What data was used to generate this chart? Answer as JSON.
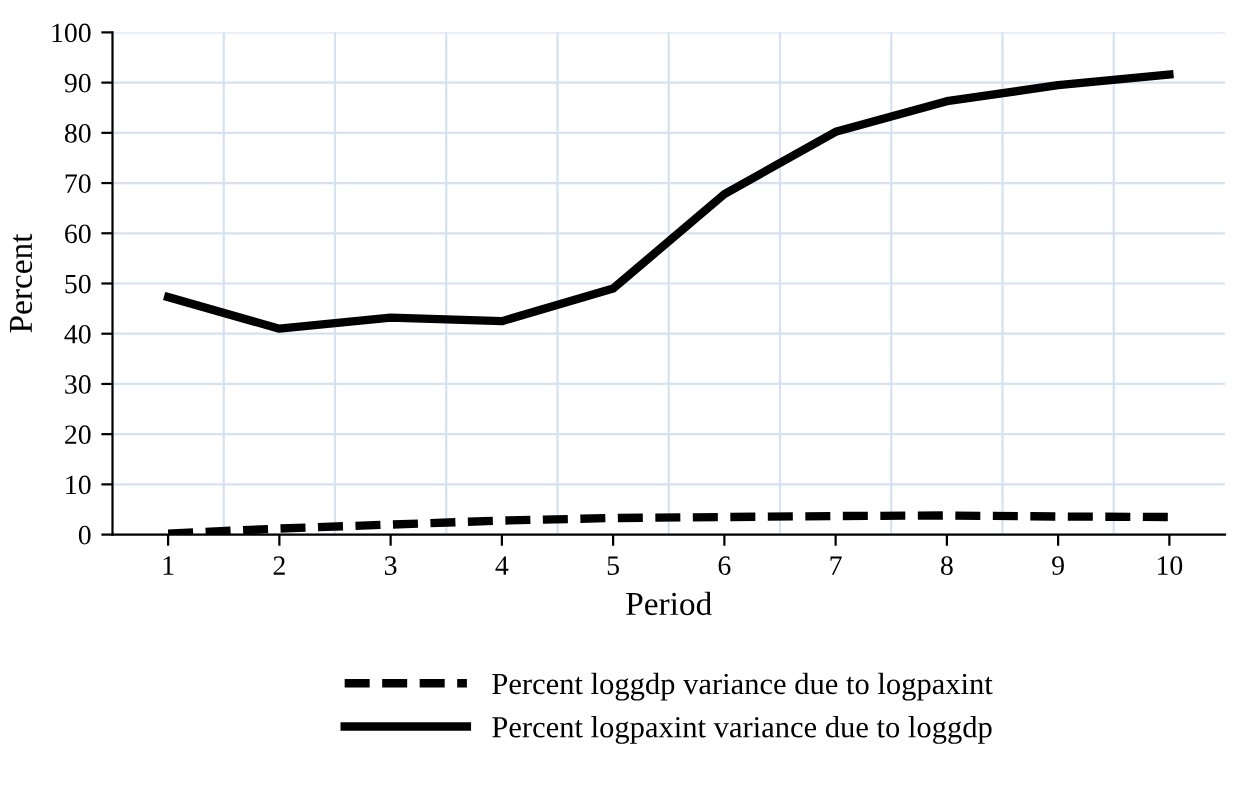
{
  "chart_data": {
    "type": "line",
    "xlabel": "Period",
    "ylabel": "Percent",
    "categories": [
      "1",
      "2",
      "3",
      "4",
      "5",
      "6",
      "7",
      "8",
      "9",
      "10"
    ],
    "series": [
      {
        "name": "Percent loggdp variance due to logpaxint",
        "color": "#000000",
        "line_style": "dashed",
        "values": [
          0.2,
          1.2,
          2.0,
          2.8,
          3.3,
          3.5,
          3.7,
          3.8,
          3.6,
          3.5
        ]
      },
      {
        "name": "Percent logpaxint variance due to loggdp",
        "color": "#000000",
        "line_style": "solid",
        "values": [
          47.3,
          41.0,
          43.2,
          42.5,
          49.0,
          67.8,
          80.2,
          86.3,
          89.5,
          91.6
        ]
      }
    ],
    "ylim": [
      0,
      100
    ],
    "yticks": [
      0,
      10,
      20,
      30,
      40,
      50,
      60,
      70,
      80,
      90,
      100
    ],
    "grid": true,
    "legend": "bottom",
    "marker": "none"
  }
}
